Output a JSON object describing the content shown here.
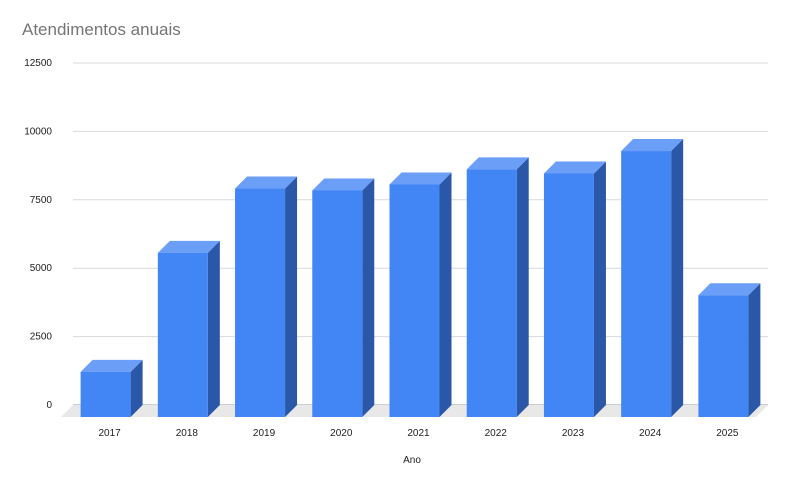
{
  "chart_data": {
    "type": "bar",
    "title": "Atendimentos anuais",
    "xlabel": "Ano",
    "ylabel": "",
    "categories": [
      "2017",
      "2018",
      "2019",
      "2020",
      "2021",
      "2022",
      "2023",
      "2024",
      "2025"
    ],
    "values": [
      1650,
      6000,
      8350,
      8280,
      8500,
      9050,
      8900,
      9720,
      4450
    ],
    "ylim": [
      0,
      12500
    ],
    "yticks": [
      "0",
      "2500",
      "5000",
      "7500",
      "10000",
      "12500"
    ],
    "grid": true,
    "legend": "none",
    "style": "3d",
    "colors": {
      "bar_front": "#4285f4",
      "bar_top": "#6a9ef7",
      "bar_side": "#2b57a8",
      "grid": "#d9d9d9",
      "floor": "#e8e8e8"
    }
  }
}
